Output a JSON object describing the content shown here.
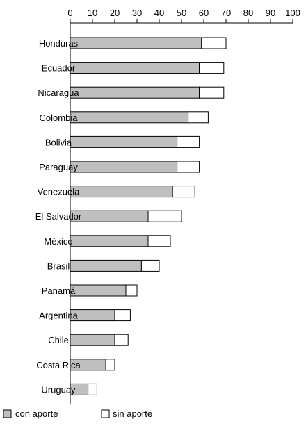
{
  "chart_data": {
    "type": "bar",
    "orientation": "horizontal",
    "stacked": true,
    "categories": [
      "Honduras",
      "Ecuador",
      "Nicaragua",
      "Colombia",
      "Bolivia",
      "Paraguay",
      "Venezuela",
      "El Salvador",
      "México",
      "Brasil",
      "Panamá",
      "Argentina",
      "Chile",
      "Costa Rica",
      "Uruguay"
    ],
    "series": [
      {
        "name": "con aporte",
        "color": "#bfbfbf",
        "values": [
          59,
          58,
          58,
          53,
          48,
          48,
          46,
          35,
          35,
          32,
          25,
          20,
          20,
          16,
          8
        ]
      },
      {
        "name": "sin aporte",
        "color": "#ffffff",
        "values": [
          11,
          11,
          11,
          9,
          10,
          10,
          10,
          15,
          10,
          8,
          5,
          7,
          6,
          4,
          4
        ]
      }
    ],
    "xticks": [
      "0",
      "10",
      "20",
      "30",
      "40",
      "50",
      "60",
      "70",
      "80",
      "90",
      "100"
    ],
    "xlim": [
      0,
      100
    ],
    "axis_position": "top",
    "grid": false,
    "legend_position": "bottom-left"
  }
}
